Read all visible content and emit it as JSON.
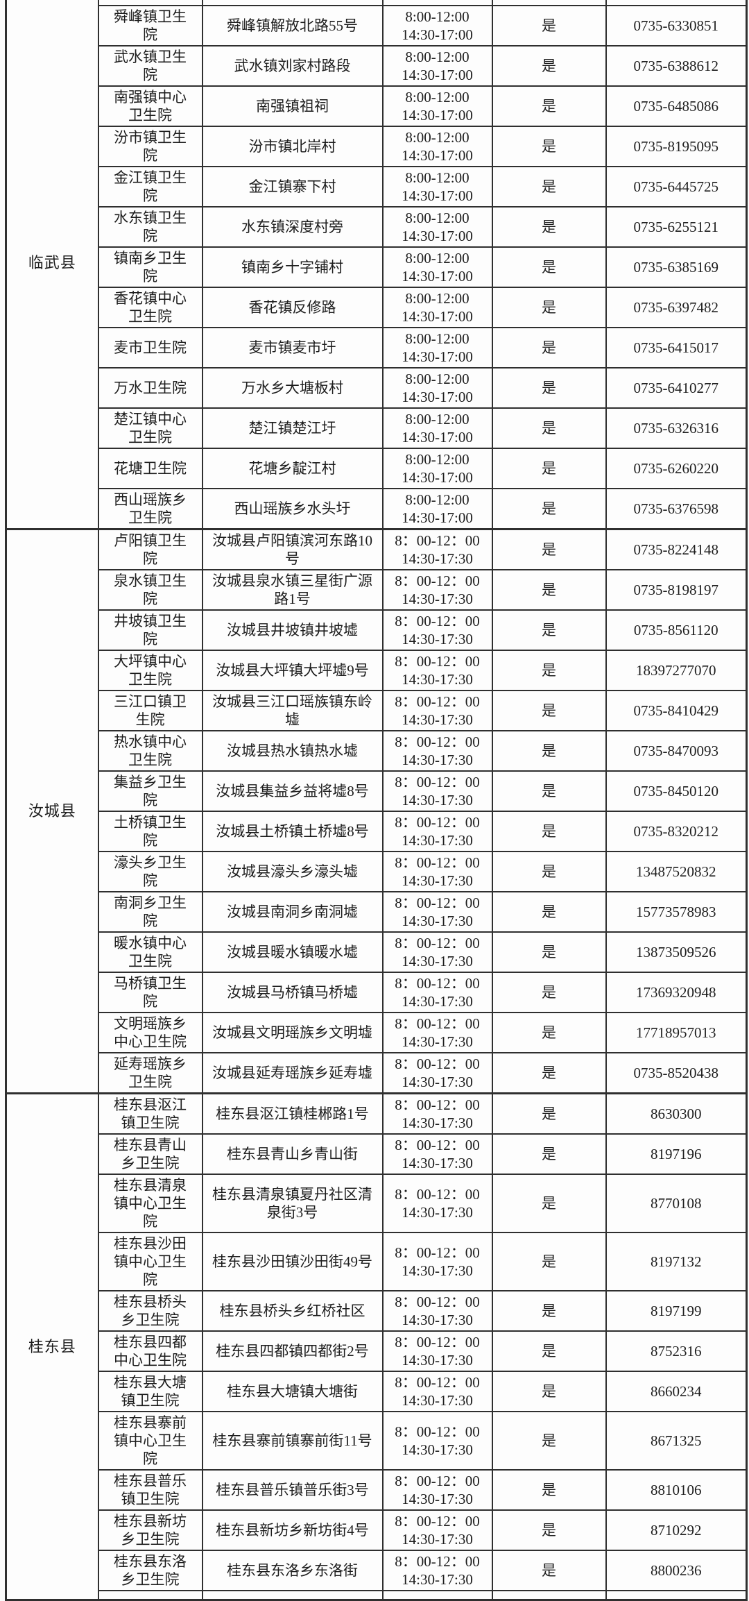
{
  "colors": {
    "table_border": "#2f2f2f",
    "text": "#1d1d1d",
    "page_background": "#fbfbfb"
  },
  "table": {
    "columns": [
      "county",
      "clinic_name",
      "address",
      "service_hours",
      "designated",
      "phone"
    ],
    "sections": [
      {
        "county": "临武县",
        "rows": [
          {
            "name": "舜峰镇卫生院",
            "address": "舜峰镇解放北路55号",
            "hours": [
              "8:00-12:00",
              "14:30-17:00"
            ],
            "designated": "是",
            "phone": "0735-6330851"
          },
          {
            "name": "武水镇卫生院",
            "address": "武水镇刘家村路段",
            "hours": [
              "8:00-12:00",
              "14:30-17:00"
            ],
            "designated": "是",
            "phone": "0735-6388612"
          },
          {
            "name": "南强镇中心卫生院",
            "address": "南强镇祖祠",
            "hours": [
              "8:00-12:00",
              "14:30-17:00"
            ],
            "designated": "是",
            "phone": "0735-6485086"
          },
          {
            "name": "汾市镇卫生院",
            "address": "汾市镇北岸村",
            "hours": [
              "8:00-12:00",
              "14:30-17:00"
            ],
            "designated": "是",
            "phone": "0735-8195095"
          },
          {
            "name": "金江镇卫生院",
            "address": "金江镇寨下村",
            "hours": [
              "8:00-12:00",
              "14:30-17:00"
            ],
            "designated": "是",
            "phone": "0735-6445725"
          },
          {
            "name": "水东镇卫生院",
            "address": "水东镇深度村旁",
            "hours": [
              "8:00-12:00",
              "14:30-17:00"
            ],
            "designated": "是",
            "phone": "0735-6255121"
          },
          {
            "name": "镇南乡卫生院",
            "address": "镇南乡十字铺村",
            "hours": [
              "8:00-12:00",
              "14:30-17:00"
            ],
            "designated": "是",
            "phone": "0735-6385169"
          },
          {
            "name": "香花镇中心卫生院",
            "address": "香花镇反修路",
            "hours": [
              "8:00-12:00",
              "14:30-17:00"
            ],
            "designated": "是",
            "phone": "0735-6397482"
          },
          {
            "name": "麦市卫生院",
            "address": "麦市镇麦市圩",
            "hours": [
              "8:00-12:00",
              "14:30-17:00"
            ],
            "designated": "是",
            "phone": "0735-6415017"
          },
          {
            "name": "万水卫生院",
            "address": "万水乡大塘板村",
            "hours": [
              "8:00-12:00",
              "14:30-17:00"
            ],
            "designated": "是",
            "phone": "0735-6410277"
          },
          {
            "name": "楚江镇中心卫生院",
            "address": "楚江镇楚江圩",
            "hours": [
              "8:00-12:00",
              "14:30-17:00"
            ],
            "designated": "是",
            "phone": "0735-6326316"
          },
          {
            "name": "花塘卫生院",
            "address": "花塘乡靛江村",
            "hours": [
              "8:00-12:00",
              "14:30-17:00"
            ],
            "designated": "是",
            "phone": "0735-6260220"
          },
          {
            "name": "西山瑶族乡卫生院",
            "address": "西山瑶族乡水头圩",
            "hours": [
              "8:00-12:00",
              "14:30-17:00"
            ],
            "designated": "是",
            "phone": "0735-6376598"
          }
        ]
      },
      {
        "county": "汝城县",
        "rows": [
          {
            "name": "卢阳镇卫生院",
            "address": "汝城县卢阳镇滨河东路10号",
            "hours": [
              "8：00-12：00",
              "14:30-17:30"
            ],
            "designated": "是",
            "phone": "0735-8224148"
          },
          {
            "name": "泉水镇卫生院",
            "address": "汝城县泉水镇三星街广源路1号",
            "hours": [
              "8：00-12：00",
              "14:30-17:30"
            ],
            "designated": "是",
            "phone": "0735-8198197"
          },
          {
            "name": "井坡镇卫生院",
            "address": "汝城县井坡镇井坡墟",
            "hours": [
              "8：00-12：00",
              "14:30-17:30"
            ],
            "designated": "是",
            "phone": "0735-8561120"
          },
          {
            "name": "大坪镇中心卫生院",
            "address": "汝城县大坪镇大坪墟9号",
            "hours": [
              "8：00-12：00",
              "14:30-17:30"
            ],
            "designated": "是",
            "phone": "18397277070"
          },
          {
            "name": "三江口镇卫生院",
            "address": "汝城县三江口瑶族镇东岭墟",
            "hours": [
              "8：00-12：00",
              "14:30-17:30"
            ],
            "designated": "是",
            "phone": "0735-8410429"
          },
          {
            "name": "热水镇中心卫生院",
            "address": "汝城县热水镇热水墟",
            "hours": [
              "8：00-12：00",
              "14:30-17:30"
            ],
            "designated": "是",
            "phone": "0735-8470093"
          },
          {
            "name": "集益乡卫生院",
            "address": "汝城县集益乡益将墟8号",
            "hours": [
              "8：00-12：00",
              "14:30-17:30"
            ],
            "designated": "是",
            "phone": "0735-8450120"
          },
          {
            "name": "土桥镇卫生院",
            "address": "汝城县土桥镇土桥墟8号",
            "hours": [
              "8：00-12：00",
              "14:30-17:30"
            ],
            "designated": "是",
            "phone": "0735-8320212"
          },
          {
            "name": "濠头乡卫生院",
            "address": "汝城县濠头乡濠头墟",
            "hours": [
              "8：00-12：00",
              "14:30-17:30"
            ],
            "designated": "是",
            "phone": "13487520832"
          },
          {
            "name": "南洞乡卫生院",
            "address": "汝城县南洞乡南洞墟",
            "hours": [
              "8：00-12：00",
              "14:30-17:30"
            ],
            "designated": "是",
            "phone": "15773578983"
          },
          {
            "name": "暖水镇中心卫生院",
            "address": "汝城县暖水镇暖水墟",
            "hours": [
              "8：00-12：00",
              "14:30-17:30"
            ],
            "designated": "是",
            "phone": "13873509526"
          },
          {
            "name": "马桥镇卫生院",
            "address": "汝城县马桥镇马桥墟",
            "hours": [
              "8：00-12：00",
              "14:30-17:30"
            ],
            "designated": "是",
            "phone": "17369320948"
          },
          {
            "name": "文明瑶族乡中心卫生院",
            "address": "汝城县文明瑶族乡文明墟",
            "hours": [
              "8：00-12：00",
              "14:30-17:30"
            ],
            "designated": "是",
            "phone": "17718957013"
          },
          {
            "name": "延寿瑶族乡卫生院",
            "address": "汝城县延寿瑶族乡延寿墟",
            "hours": [
              "8：00-12：00",
              "14:30-17:30"
            ],
            "designated": "是",
            "phone": "0735-8520438"
          }
        ]
      },
      {
        "county": "桂东县",
        "rows": [
          {
            "name": "桂东县沤江镇卫生院",
            "address": "桂东县沤江镇桂郴路1号",
            "hours": [
              "8：00-12：00",
              "14:30-17:30"
            ],
            "designated": "是",
            "phone": "8630300"
          },
          {
            "name": "桂东县青山乡卫生院",
            "address": "桂东县青山乡青山街",
            "hours": [
              "8：00-12：00",
              "14:30-17:30"
            ],
            "designated": "是",
            "phone": "8197196"
          },
          {
            "name": "桂东县清泉镇中心卫生院",
            "address": "桂东县清泉镇夏丹社区清泉街3号",
            "hours": [
              "8：00-12：00",
              "14:30-17:30"
            ],
            "designated": "是",
            "phone": "8770108"
          },
          {
            "name": "桂东县沙田镇中心卫生院",
            "address": "桂东县沙田镇沙田街49号",
            "hours": [
              "8：00-12：00",
              "14:30-17:30"
            ],
            "designated": "是",
            "phone": "8197132"
          },
          {
            "name": "桂东县桥头乡卫生院",
            "address": "桂东县桥头乡红桥社区",
            "hours": [
              "8：00-12：00",
              "14:30-17:30"
            ],
            "designated": "是",
            "phone": "8197199"
          },
          {
            "name": "桂东县四都中心卫生院",
            "address": "桂东县四都镇四都街2号",
            "hours": [
              "8：00-12：00",
              "14:30-17:30"
            ],
            "designated": "是",
            "phone": "8752316"
          },
          {
            "name": "桂东县大塘镇卫生院",
            "address": "桂东县大塘镇大塘街",
            "hours": [
              "8：00-12：00",
              "14:30-17:30"
            ],
            "designated": "是",
            "phone": "8660234"
          },
          {
            "name": "桂东县寨前镇中心卫生院",
            "address": "桂东县寨前镇寨前街11号",
            "hours": [
              "8：00-12：00",
              "14:30-17:30"
            ],
            "designated": "是",
            "phone": "8671325"
          },
          {
            "name": "桂东县普乐镇卫生院",
            "address": "桂东县普乐镇普乐街3号",
            "hours": [
              "8：00-12：00",
              "14:30-17:30"
            ],
            "designated": "是",
            "phone": "8810106"
          },
          {
            "name": "桂东县新坊乡卫生院",
            "address": "桂东县新坊乡新坊街4号",
            "hours": [
              "8：00-12：00",
              "14:30-17:30"
            ],
            "designated": "是",
            "phone": "8710292"
          },
          {
            "name": "桂东县东洛乡卫生院",
            "address": "桂东县东洛乡东洛街",
            "hours": [
              "8：00-12：00",
              "14:30-17:30"
            ],
            "designated": "是",
            "phone": "8800236"
          }
        ]
      }
    ]
  }
}
